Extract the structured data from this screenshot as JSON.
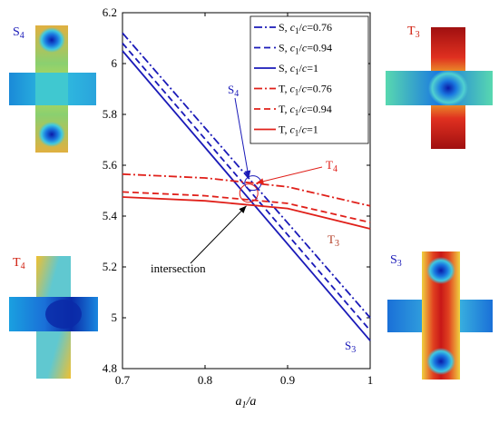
{
  "chart_data": {
    "type": "line",
    "xlabel": "a1/a",
    "xlabel_parts": {
      "base": "a",
      "sub": "1",
      "rest": "/a"
    },
    "xlim": [
      0.7,
      1.0
    ],
    "ylim": [
      4.8,
      6.2
    ],
    "xticks": [
      "0.7",
      "0.8",
      "0.9",
      "1"
    ],
    "yticks": [
      "4.8",
      "5",
      "5.2",
      "5.4",
      "5.6",
      "5.8",
      "6",
      "6.2"
    ],
    "legend_position": "top-right",
    "series": [
      {
        "name": "S, c1/c=0.76",
        "label": {
          "prefix": "S, ",
          "c": "c",
          "sub": "1",
          "rest": "/c=0.76"
        },
        "color": "#1a1ab8",
        "dash": "dashdot",
        "x": [
          0.7,
          1.0
        ],
        "y": [
          6.12,
          5.0
        ]
      },
      {
        "name": "S, c1/c=0.94",
        "label": {
          "prefix": "S, ",
          "c": "c",
          "sub": "1",
          "rest": "/c=0.94"
        },
        "color": "#1a1ab8",
        "dash": "dash",
        "x": [
          0.7,
          1.0
        ],
        "y": [
          6.08,
          4.95
        ]
      },
      {
        "name": "S, c1/c=1",
        "label": {
          "prefix": "S, ",
          "c": "c",
          "sub": "1",
          "rest": "/c=1"
        },
        "color": "#1a1ab8",
        "dash": "solid",
        "x": [
          0.7,
          1.0
        ],
        "y": [
          6.05,
          4.91
        ]
      },
      {
        "name": "T, c1/c=0.76",
        "label": {
          "prefix": "T, ",
          "c": "c",
          "sub": "1",
          "rest": "/c=0.76"
        },
        "color": "#e0201a",
        "dash": "dashdot",
        "x": [
          0.7,
          0.8,
          0.9,
          1.0
        ],
        "y": [
          5.565,
          5.55,
          5.515,
          5.44
        ]
      },
      {
        "name": "T, c1/c=0.94",
        "label": {
          "prefix": "T, ",
          "c": "c",
          "sub": "1",
          "rest": "/c=0.94"
        },
        "color": "#e0201a",
        "dash": "dash",
        "x": [
          0.7,
          0.8,
          0.9,
          1.0
        ],
        "y": [
          5.495,
          5.48,
          5.45,
          5.375
        ]
      },
      {
        "name": "T, c1/c=1",
        "label": {
          "prefix": "T, ",
          "c": "c",
          "sub": "1",
          "rest": "/c=1"
        },
        "color": "#e0201a",
        "dash": "solid",
        "x": [
          0.7,
          0.8,
          0.9,
          1.0
        ],
        "y": [
          5.475,
          5.46,
          5.43,
          5.35
        ]
      }
    ],
    "annotations": [
      {
        "text": "S4",
        "base": "S",
        "sub": "4",
        "color": "#1a1ab8"
      },
      {
        "text": "T4",
        "base": "T",
        "sub": "4",
        "color": "#e0201a"
      },
      {
        "text": "intersection",
        "color": "#000000"
      },
      {
        "text": "T3",
        "base": "T",
        "sub": "3",
        "color": "#b23a22"
      },
      {
        "text": "S3",
        "base": "S",
        "sub": "3",
        "color": "#1a1ab8"
      }
    ]
  },
  "mode_shapes": [
    {
      "label_base": "S",
      "label_sub": "4",
      "label_color": "#1a1ab8",
      "pattern": "two-blue-spots-vertical"
    },
    {
      "label_base": "T",
      "label_sub": "3",
      "label_color": "#d02010",
      "pattern": "red-arms-blue-center"
    },
    {
      "label_base": "T",
      "label_sub": "4",
      "label_color": "#d02010",
      "pattern": "antisymmetric-yellow-blue"
    },
    {
      "label_base": "S",
      "label_sub": "3",
      "label_color": "#1a1ab8",
      "pattern": "two-blue-spots-red-core"
    }
  ]
}
